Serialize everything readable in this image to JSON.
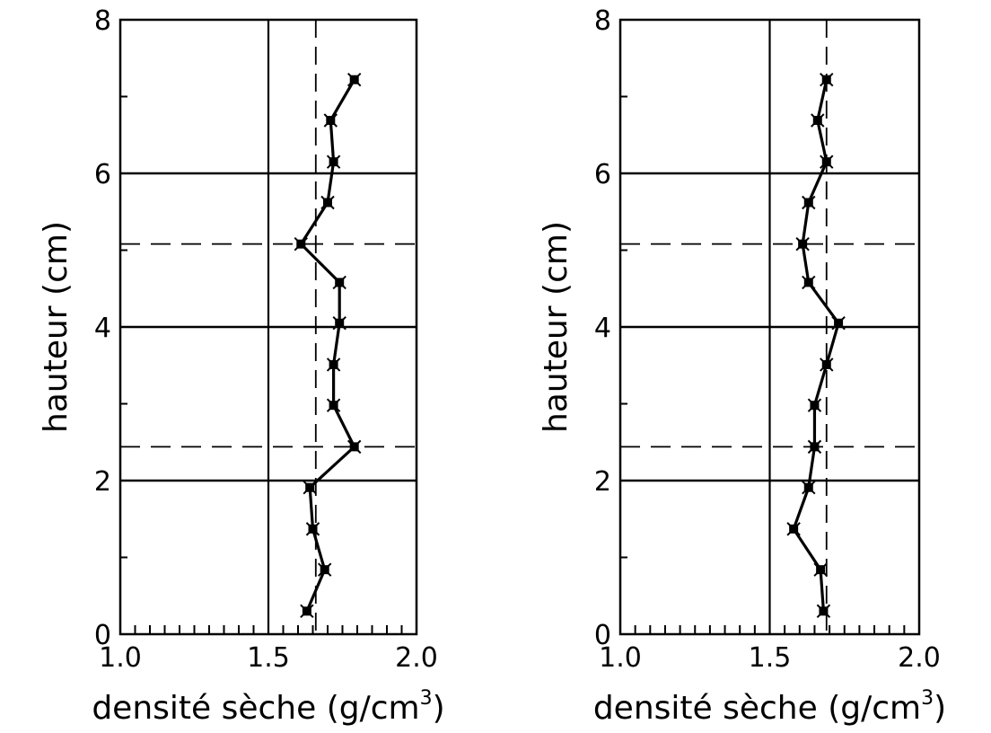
{
  "chart_data": [
    {
      "type": "line",
      "title": "",
      "xlabel": "densité sèche (g/cm",
      "xlabel_sup": "3",
      "xlabel_end": ")",
      "ylabel": "hauteur (cm)",
      "xlim": [
        1.0,
        2.0
      ],
      "ylim": [
        0,
        8
      ],
      "x_ticks": [
        "1.0",
        "1.5",
        "2.0"
      ],
      "y_ticks": [
        "0",
        "2",
        "4",
        "6",
        "8"
      ],
      "solid_hlines": [
        2,
        4,
        6
      ],
      "dashed_hlines": [
        2.44,
        5.08
      ],
      "solid_vlines": [
        1.5
      ],
      "dashed_vlines": [
        1.66
      ],
      "series": [
        {
          "x": [
            1.63,
            1.69,
            1.65,
            1.64,
            1.79,
            1.72,
            1.72,
            1.74,
            1.74,
            1.61,
            1.7,
            1.72,
            1.71,
            1.79
          ],
          "y": [
            0.3,
            0.84,
            1.37,
            1.91,
            2.44,
            2.98,
            3.51,
            4.05,
            4.58,
            5.08,
            5.62,
            6.15,
            6.69,
            7.22
          ]
        }
      ]
    },
    {
      "type": "line",
      "title": "",
      "xlabel": "densité sèche (g/cm",
      "xlabel_sup": "3",
      "xlabel_end": ")",
      "ylabel": "hauteur (cm)",
      "xlim": [
        1.0,
        2.0
      ],
      "ylim": [
        0,
        8
      ],
      "x_ticks": [
        "1.0",
        "1.5",
        "2.0"
      ],
      "y_ticks": [
        "0",
        "2",
        "4",
        "6",
        "8"
      ],
      "solid_hlines": [
        2,
        4,
        6
      ],
      "dashed_hlines": [
        2.44,
        5.08
      ],
      "solid_vlines": [
        1.5
      ],
      "dashed_vlines": [
        1.69
      ],
      "series": [
        {
          "x": [
            1.68,
            1.67,
            1.58,
            1.63,
            1.65,
            1.65,
            1.69,
            1.73,
            1.63,
            1.61,
            1.63,
            1.69,
            1.66,
            1.69
          ],
          "y": [
            0.3,
            0.84,
            1.37,
            1.91,
            2.44,
            2.98,
            3.51,
            4.05,
            4.58,
            5.08,
            5.62,
            6.15,
            6.69,
            7.22
          ]
        }
      ]
    }
  ]
}
